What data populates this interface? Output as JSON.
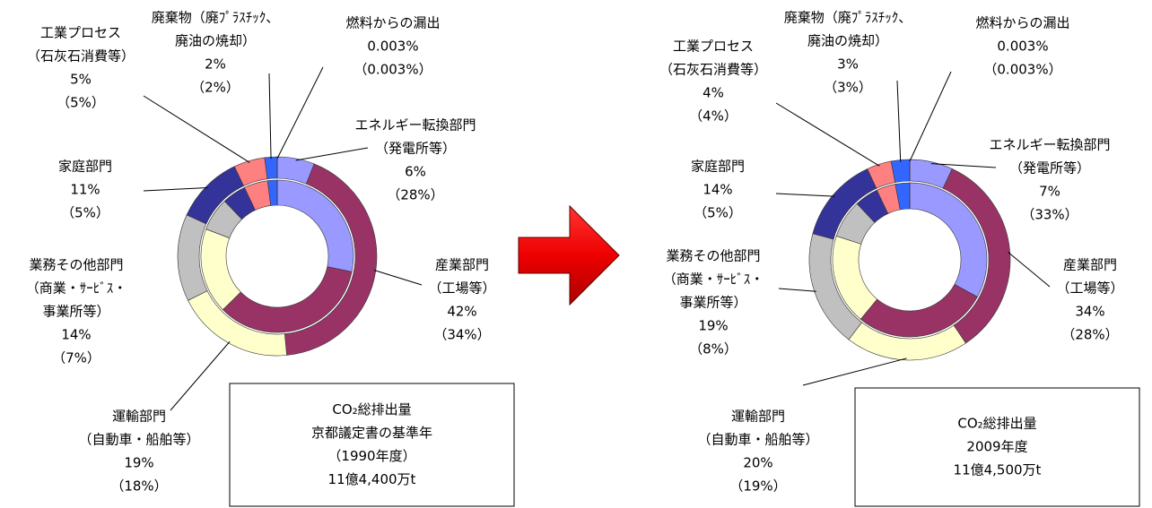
{
  "chart_data": [
    {
      "type": "donut",
      "categories": [
        [
          "エネルギー転換部門",
          "（発電所等）"
        ],
        [
          "産業部門",
          "（工場等）"
        ],
        [
          "運輸部門",
          "（自動車・船舶等）"
        ],
        [
          "業務その他部門",
          "（商業・ｻｰﾋﾞｽ・",
          "事業所等）"
        ],
        [
          "家庭部門"
        ],
        [
          "工業プロセス",
          "（石灰石消費等）"
        ],
        [
          "廃棄物（廃ﾌﾟﾗｽﾁｯｸ、",
          "廃油の焼却）"
        ],
        [
          "燃料からの漏出"
        ]
      ],
      "colors": [
        "#9999ff",
        "#993366",
        "#ffffcc",
        "#c0c0c0",
        "#333399",
        "#ff8080",
        "#3366ff",
        "#ccccff"
      ],
      "outer": {
        "values": [
          6,
          42,
          19,
          14,
          11,
          5,
          2,
          0.003
        ],
        "value_labels": [
          "6%",
          "42%",
          "19%",
          "14%",
          "11%",
          "5%",
          "2%",
          "0.003%"
        ]
      },
      "inner": {
        "values": [
          28,
          34,
          18,
          7,
          5,
          5,
          2,
          0.003
        ],
        "value_labels": [
          "（28%）",
          "（34%）",
          "（18%）",
          "（7%）",
          "（5%）",
          "（5%）",
          "（2%）",
          "（0.003%）"
        ]
      },
      "note": [
        "CO₂総排出量",
        "京都議定書の基準年",
        "（1990年度）",
        "11億4,400万t"
      ]
    },
    {
      "type": "donut",
      "categories": [
        [
          "エネルギー転換部門",
          "（発電所等）"
        ],
        [
          "産業部門",
          "（工場等）"
        ],
        [
          "運輸部門",
          "（自動車・船舶等）"
        ],
        [
          "業務その他部門",
          "（商業・ｻｰﾋﾞｽ・",
          "事業所等）"
        ],
        [
          "家庭部門"
        ],
        [
          "工業プロセス",
          "（石灰石消費等）"
        ],
        [
          "廃棄物（廃ﾌﾟﾗｽﾁｯｸ、",
          "廃油の焼却）"
        ],
        [
          "燃料からの漏出"
        ]
      ],
      "colors": [
        "#9999ff",
        "#993366",
        "#ffffcc",
        "#c0c0c0",
        "#333399",
        "#ff8080",
        "#3366ff",
        "#ccccff"
      ],
      "outer": {
        "values": [
          7,
          34,
          20,
          19,
          14,
          4,
          3,
          0.003
        ],
        "value_labels": [
          "7%",
          "34%",
          "20%",
          "19%",
          "14%",
          "4%",
          "3%",
          "0.003%"
        ]
      },
      "inner": {
        "values": [
          33,
          28,
          19,
          8,
          5,
          4,
          3,
          0.003
        ],
        "value_labels": [
          "（33%）",
          "（28%）",
          "（19%）",
          "（8%）",
          "（5%）",
          "（4%）",
          "（3%）",
          "（0.003%）"
        ]
      },
      "note": [
        "CO₂総排出量",
        "2009年度",
        "11億4,500万t"
      ]
    }
  ]
}
